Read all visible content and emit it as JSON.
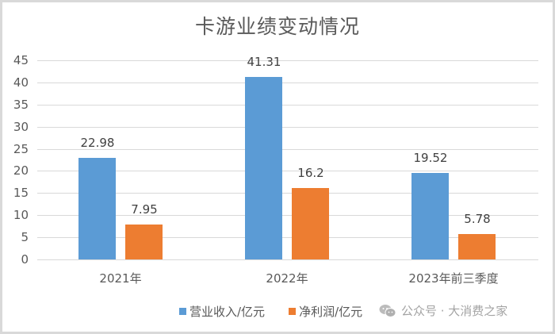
{
  "chart_data": {
    "type": "bar",
    "title": "卡游业绩变动情况",
    "categories": [
      "2021年",
      "2022年",
      "2023年前三季度"
    ],
    "series": [
      {
        "name": "营业收入/亿元",
        "color": "#5b9bd5",
        "values": [
          22.98,
          41.31,
          19.52
        ]
      },
      {
        "name": "净利润/亿元",
        "color": "#ed7d31",
        "values": [
          7.95,
          16.2,
          5.78
        ]
      }
    ],
    "data_labels": {
      "营业收入/亿元": [
        "22.98",
        "41.31",
        "19.52"
      ],
      "净利润/亿元": [
        "7.95",
        "16.2",
        "5.78"
      ]
    },
    "xlabel": "",
    "ylabel": "",
    "ylim": [
      0,
      45
    ],
    "yticks": [
      "0",
      "5",
      "10",
      "15",
      "20",
      "25",
      "30",
      "35",
      "40",
      "45"
    ],
    "grid": true,
    "legend_position": "bottom"
  },
  "watermark": {
    "text": "公众号 · 大消费之家",
    "icon": "wechat-icon"
  }
}
